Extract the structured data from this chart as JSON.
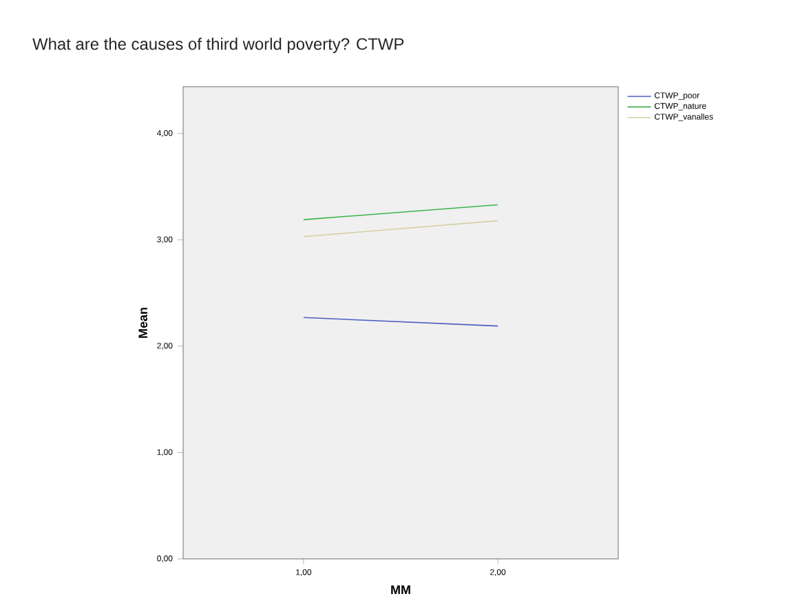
{
  "chart_data": {
    "type": "line",
    "title": "What are the causes of third world poverty? CTWP",
    "xlabel": "MM",
    "ylabel": "Mean",
    "x": [
      1,
      2
    ],
    "series": [
      {
        "name": "CTWP_poor",
        "color": "#4a5cc0",
        "values": [
          2.27,
          2.19
        ]
      },
      {
        "name": "CTWP_nature",
        "color": "#3cb44b",
        "values": [
          3.19,
          3.33
        ]
      },
      {
        "name": "CTWP_vanalles",
        "color": "#d6cfa3",
        "values": [
          3.03,
          3.18
        ]
      }
    ],
    "xlim": [
      0.38,
      2.62
    ],
    "ylim": [
      0,
      4.44
    ],
    "xticks": [
      {
        "value": 1,
        "label": "1,00"
      },
      {
        "value": 2,
        "label": "2,00"
      }
    ],
    "yticks": [
      {
        "value": 0,
        "label": "0,00"
      },
      {
        "value": 1,
        "label": "1,00"
      },
      {
        "value": 2,
        "label": "2,00"
      },
      {
        "value": 3,
        "label": "3,00"
      },
      {
        "value": 4,
        "label": "4,00"
      }
    ],
    "legend": "right",
    "line_style": "solid"
  }
}
